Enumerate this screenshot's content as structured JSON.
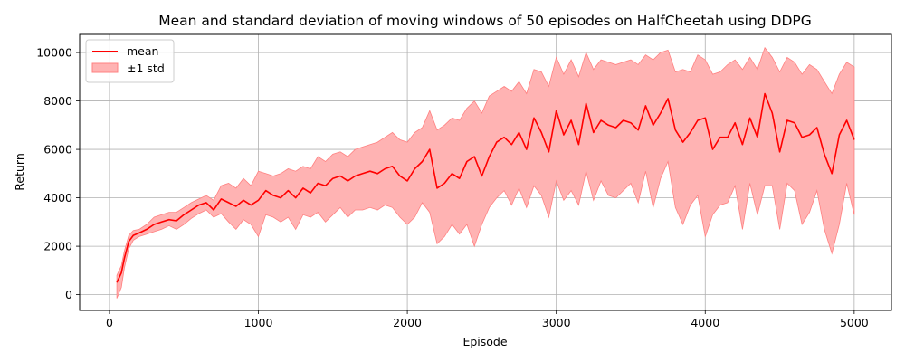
{
  "chart_data": {
    "type": "line",
    "title": "Mean and standard deviation of moving windows of 50 episodes on HalfCheetah using DDPG",
    "xlabel": "Episode",
    "ylabel": "Return",
    "xlim": [
      -200,
      5250
    ],
    "ylim": [
      -650,
      10750
    ],
    "xticks": [
      0,
      1000,
      2000,
      3000,
      4000,
      5000
    ],
    "yticks": [
      0,
      2000,
      4000,
      6000,
      8000,
      10000
    ],
    "grid": true,
    "legend_position": "top-left",
    "colors": {
      "mean": "#ff0000",
      "band_fill": "#ffb3b3",
      "band_edge": "#ff8080",
      "grid": "#b0b0b0"
    },
    "series": [
      {
        "name": "mean",
        "x": [
          50,
          80,
          100,
          130,
          160,
          200,
          250,
          300,
          350,
          400,
          450,
          500,
          550,
          600,
          650,
          700,
          750,
          800,
          850,
          900,
          950,
          1000,
          1050,
          1100,
          1150,
          1200,
          1250,
          1300,
          1350,
          1400,
          1450,
          1500,
          1550,
          1600,
          1650,
          1700,
          1750,
          1800,
          1850,
          1900,
          1950,
          2000,
          2050,
          2100,
          2150,
          2200,
          2250,
          2300,
          2350,
          2400,
          2450,
          2500,
          2550,
          2600,
          2650,
          2700,
          2750,
          2800,
          2850,
          2900,
          2950,
          3000,
          3050,
          3100,
          3150,
          3200,
          3250,
          3300,
          3350,
          3400,
          3450,
          3500,
          3550,
          3600,
          3650,
          3700,
          3750,
          3800,
          3850,
          3900,
          3950,
          4000,
          4050,
          4100,
          4150,
          4200,
          4250,
          4300,
          4350,
          4400,
          4450,
          4500,
          4550,
          4600,
          4650,
          4700,
          4750,
          4800,
          4850,
          4900,
          4950,
          5000
        ],
        "y": [
          500,
          900,
          1500,
          2200,
          2450,
          2550,
          2700,
          2900,
          3000,
          3100,
          3050,
          3300,
          3500,
          3700,
          3800,
          3500,
          3950,
          3800,
          3650,
          3900,
          3700,
          3900,
          4300,
          4100,
          4000,
          4300,
          4000,
          4400,
          4200,
          4600,
          4500,
          4800,
          4900,
          4700,
          4900,
          5000,
          5100,
          5000,
          5200,
          5300,
          4900,
          4700,
          5200,
          5500,
          6000,
          4400,
          4600,
          5000,
          4800,
          5500,
          5700,
          4900,
          5700,
          6300,
          6500,
          6200,
          6700,
          6000,
          7300,
          6700,
          5900,
          7600,
          6600,
          7200,
          6200,
          7900,
          6700,
          7200,
          7000,
          6900,
          7200,
          7100,
          6800,
          7800,
          7000,
          7500,
          8100,
          6800,
          6300,
          6700,
          7200,
          7300,
          6000,
          6500,
          6500,
          7100,
          6200,
          7300,
          6500,
          8300,
          7500,
          5900,
          7200,
          7100,
          6500,
          6600,
          6900,
          5800,
          5000,
          6600,
          7200,
          6400
        ]
      },
      {
        "name": "±1 std",
        "x": [
          50,
          80,
          100,
          130,
          160,
          200,
          250,
          300,
          350,
          400,
          450,
          500,
          550,
          600,
          650,
          700,
          750,
          800,
          850,
          900,
          950,
          1000,
          1050,
          1100,
          1150,
          1200,
          1250,
          1300,
          1350,
          1400,
          1450,
          1500,
          1550,
          1600,
          1650,
          1700,
          1750,
          1800,
          1850,
          1900,
          1950,
          2000,
          2050,
          2100,
          2150,
          2200,
          2250,
          2300,
          2350,
          2400,
          2450,
          2500,
          2550,
          2600,
          2650,
          2700,
          2750,
          2800,
          2850,
          2900,
          2950,
          3000,
          3050,
          3100,
          3150,
          3200,
          3250,
          3300,
          3350,
          3400,
          3450,
          3500,
          3550,
          3600,
          3650,
          3700,
          3750,
          3800,
          3850,
          3900,
          3950,
          4000,
          4050,
          4100,
          4150,
          4200,
          4250,
          4300,
          4350,
          4400,
          4450,
          4500,
          4550,
          4600,
          4650,
          4700,
          4750,
          4800,
          4850,
          4900,
          4950,
          5000
        ],
        "lower": [
          -150,
          300,
          1100,
          1900,
          2250,
          2400,
          2500,
          2600,
          2700,
          2850,
          2700,
          2900,
          3150,
          3350,
          3500,
          3200,
          3350,
          3000,
          2700,
          3100,
          2900,
          2400,
          3300,
          3200,
          3000,
          3200,
          2700,
          3300,
          3200,
          3400,
          3000,
          3300,
          3600,
          3200,
          3500,
          3500,
          3600,
          3500,
          3700,
          3600,
          3200,
          2900,
          3200,
          3800,
          3400,
          2100,
          2400,
          2900,
          2500,
          2900,
          2000,
          2900,
          3600,
          4000,
          4300,
          3700,
          4400,
          3600,
          4500,
          4100,
          3200,
          4700,
          3900,
          4300,
          3700,
          5100,
          3900,
          4700,
          4100,
          4000,
          4300,
          4600,
          3800,
          5100,
          3600,
          4800,
          5500,
          3600,
          2900,
          3700,
          4100,
          2400,
          3300,
          3700,
          3800,
          4500,
          2700,
          4600,
          3300,
          4500,
          4500,
          2700,
          4600,
          4300,
          2900,
          3400,
          4300,
          2700,
          1700,
          2900,
          4600,
          3300
        ],
        "upper": [
          800,
          1200,
          1800,
          2450,
          2650,
          2700,
          2900,
          3200,
          3300,
          3400,
          3400,
          3600,
          3800,
          3950,
          4100,
          3900,
          4500,
          4600,
          4400,
          4800,
          4500,
          5100,
          5000,
          4900,
          5000,
          5200,
          5100,
          5300,
          5200,
          5700,
          5500,
          5800,
          5900,
          5700,
          6000,
          6100,
          6200,
          6300,
          6500,
          6700,
          6400,
          6300,
          6700,
          6900,
          7600,
          6800,
          7000,
          7300,
          7200,
          7700,
          8000,
          7500,
          8200,
          8400,
          8600,
          8400,
          8800,
          8300,
          9300,
          9200,
          8600,
          9800,
          9100,
          9700,
          9000,
          10000,
          9300,
          9700,
          9600,
          9500,
          9600,
          9700,
          9500,
          9900,
          9700,
          10000,
          10100,
          9200,
          9300,
          9200,
          9900,
          9700,
          9100,
          9200,
          9500,
          9700,
          9300,
          9800,
          9300,
          10200,
          9800,
          9200,
          9800,
          9600,
          9100,
          9500,
          9300,
          8800,
          8300,
          9100,
          9600,
          9400
        ]
      }
    ]
  }
}
